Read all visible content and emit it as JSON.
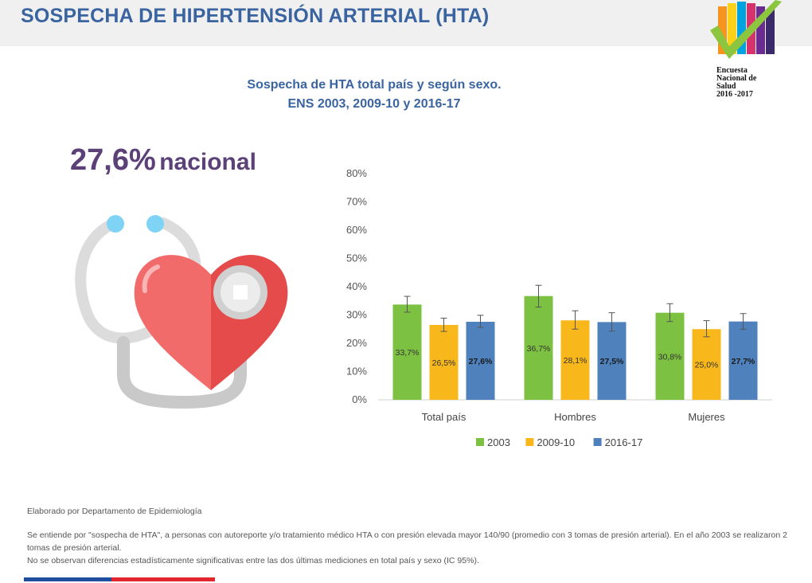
{
  "header": {
    "title": "SOSPECHA DE HIPERTENSIÓN ARTERIAL (HTA)"
  },
  "logo": {
    "lines": [
      "Encuesta",
      "Nacional de",
      "Salud",
      "2016 -2017"
    ]
  },
  "chart_title": {
    "line1": "Sospecha de HTA total país y según sexo.",
    "line2": "ENS 2003, 2009-10 y 2016-17"
  },
  "national": {
    "value": "27,6%",
    "label": "nacional"
  },
  "chart_data": {
    "type": "bar",
    "categories": [
      "Total país",
      "Hombres",
      "Mujeres"
    ],
    "series": [
      {
        "name": "2003",
        "color": "#7dc142",
        "values": [
          33.7,
          36.7,
          30.8
        ],
        "labels": [
          "33,7%",
          "36,7%",
          "30,8%"
        ],
        "ci_low": [
          31.0,
          32.8,
          27.7
        ],
        "ci_high": [
          36.6,
          40.5,
          34.0
        ]
      },
      {
        "name": "2009-10",
        "color": "#f8b81c",
        "values": [
          26.5,
          28.1,
          25.0
        ],
        "labels": [
          "26,5%",
          "28,1%",
          "25,0%"
        ],
        "ci_low": [
          24.2,
          25.0,
          22.3
        ],
        "ci_high": [
          28.9,
          31.5,
          28.0
        ]
      },
      {
        "name": "2016-17",
        "color": "#4f81bd",
        "values": [
          27.6,
          27.5,
          27.7
        ],
        "labels": [
          "27,6%",
          "27,5%",
          "27,7%"
        ],
        "ci_low": [
          25.6,
          24.3,
          25.0
        ],
        "ci_high": [
          29.9,
          30.8,
          30.5
        ]
      }
    ],
    "y_ticks": [
      "0%",
      "10%",
      "20%",
      "30%",
      "40%",
      "50%",
      "60%",
      "70%",
      "80%"
    ],
    "ylim": [
      0,
      80
    ],
    "legend_position": "bottom",
    "grid": false
  },
  "notes": {
    "source": "Elaborado por Departamento de Epidemiología",
    "definition": "Se entiende por \"sospecha de HTA\", a personas con autoreporte y/o tratamiento médico HTA o con presión elevada mayor 140/90 (promedio con 3 tomas de presión arterial). En el año 2003 se realizaron 2 tomas de presión arterial.",
    "significance": "No se observan diferencias estadísticamente significativas entre las dos últimas mediciones en total país y sexo (IC 95%)."
  }
}
